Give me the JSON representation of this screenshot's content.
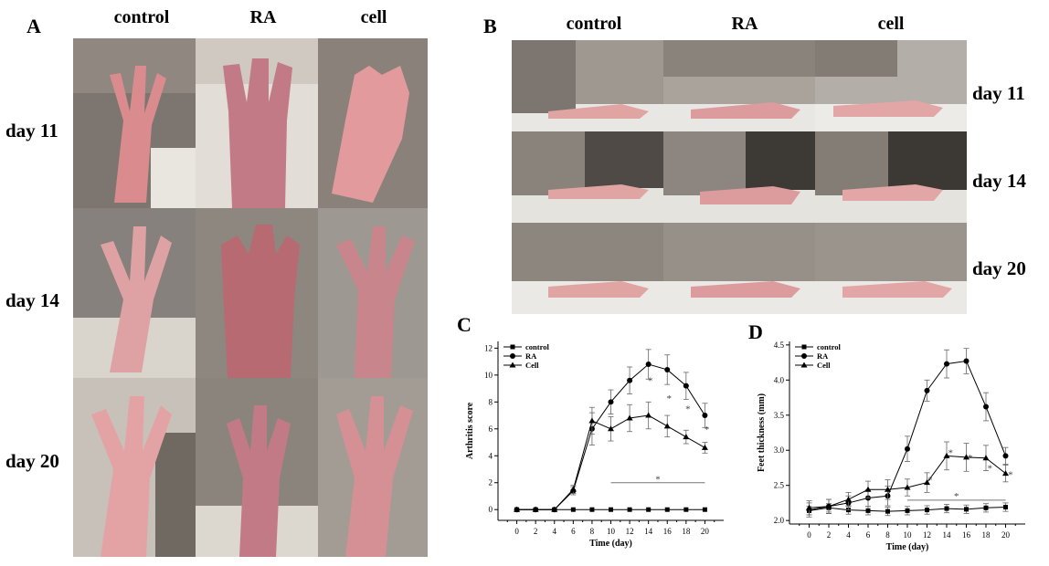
{
  "panels": {
    "A": {
      "letter": "A",
      "columns": [
        "control",
        "RA",
        "cell"
      ],
      "rows": [
        "day 11",
        "day 14",
        "day 20"
      ]
    },
    "B": {
      "letter": "B",
      "columns": [
        "control",
        "RA",
        "cell"
      ],
      "rows": [
        "day 11",
        "day 14",
        "day 20"
      ]
    },
    "C": {
      "letter": "C"
    },
    "D": {
      "letter": "D"
    }
  },
  "colors": {
    "line": "#000000",
    "skin": "#d98b8e",
    "fur": "#7d7670",
    "bg": "#ffffff"
  },
  "chart_data": [
    {
      "type": "line",
      "panel": "C",
      "xlabel": "Time (day)",
      "ylabel": "Arthritis score",
      "x": [
        0,
        2,
        4,
        6,
        8,
        10,
        12,
        14,
        16,
        18,
        20
      ],
      "xlim": [
        -2,
        22
      ],
      "ylim": [
        -0.8,
        12.5
      ],
      "xticks": [
        0,
        2,
        4,
        6,
        8,
        10,
        12,
        14,
        16,
        18,
        20
      ],
      "yticks": [
        0,
        2,
        4,
        6,
        8,
        10,
        12
      ],
      "legend_position": "top-left",
      "series": [
        {
          "name": "control",
          "marker": "square",
          "values": [
            0,
            0,
            0,
            0,
            0,
            0,
            0,
            0,
            0,
            0,
            0
          ],
          "errors": [
            0,
            0,
            0,
            0,
            0,
            0,
            0,
            0,
            0,
            0,
            0
          ]
        },
        {
          "name": "RA",
          "marker": "circle",
          "values": [
            0,
            0,
            0,
            1.4,
            6.0,
            8.0,
            9.6,
            10.8,
            10.4,
            9.2,
            7.0
          ],
          "errors": [
            0,
            0,
            0,
            0.3,
            1.2,
            0.9,
            1.0,
            1.1,
            1.1,
            1.0,
            0.9
          ]
        },
        {
          "name": "Cell",
          "marker": "triangle",
          "values": [
            0,
            0,
            0,
            1.5,
            6.6,
            6.0,
            6.8,
            7.0,
            6.2,
            5.4,
            4.6
          ],
          "errors": [
            0,
            0,
            0,
            0.3,
            1.0,
            0.9,
            1.0,
            1.0,
            0.8,
            0.5,
            0.4
          ]
        }
      ],
      "annotations": [
        {
          "text": "*",
          "x": 14.2,
          "y": 9.6
        },
        {
          "text": "*",
          "x": 16.2,
          "y": 8.3
        },
        {
          "text": "*",
          "x": 18.2,
          "y": 7.5
        },
        {
          "text": "*",
          "x": 20.2,
          "y": 6.0
        },
        {
          "text": "*",
          "x": 15,
          "y": 2.3
        }
      ],
      "significance_bar": {
        "x0": 10,
        "x1": 20,
        "y": 2.0
      }
    },
    {
      "type": "line",
      "panel": "D",
      "xlabel": "Time (day)",
      "ylabel": "Feet thickness (mm)",
      "x": [
        0,
        2,
        4,
        6,
        8,
        10,
        12,
        14,
        16,
        18,
        20
      ],
      "xlim": [
        -2,
        22
      ],
      "ylim": [
        1.95,
        4.55
      ],
      "xticks": [
        0,
        2,
        4,
        6,
        8,
        10,
        12,
        14,
        16,
        18,
        20
      ],
      "yticks": [
        2.0,
        2.5,
        3.0,
        3.5,
        4.0,
        4.5
      ],
      "legend_position": "top-left",
      "series": [
        {
          "name": "control",
          "marker": "square",
          "values": [
            2.14,
            2.18,
            2.15,
            2.14,
            2.13,
            2.14,
            2.15,
            2.17,
            2.16,
            2.18,
            2.19
          ],
          "errors": [
            0.06,
            0.06,
            0.06,
            0.06,
            0.06,
            0.06,
            0.06,
            0.06,
            0.06,
            0.06,
            0.06
          ]
        },
        {
          "name": "RA",
          "marker": "circle",
          "values": [
            2.15,
            2.2,
            2.25,
            2.32,
            2.35,
            3.02,
            3.85,
            4.23,
            4.27,
            3.62,
            2.92
          ],
          "errors": [
            0.1,
            0.1,
            0.1,
            0.12,
            0.14,
            0.18,
            0.15,
            0.2,
            0.18,
            0.2,
            0.12
          ]
        },
        {
          "name": "Cell",
          "marker": "triangle",
          "values": [
            2.18,
            2.2,
            2.3,
            2.44,
            2.44,
            2.47,
            2.54,
            2.92,
            2.9,
            2.89,
            2.67
          ],
          "errors": [
            0.1,
            0.1,
            0.1,
            0.12,
            0.14,
            0.12,
            0.14,
            0.2,
            0.2,
            0.18,
            0.12
          ]
        }
      ],
      "annotations": [
        {
          "text": "*",
          "x": 12.3,
          "y": 2.58
        },
        {
          "text": "*",
          "x": 14.4,
          "y": 2.97
        },
        {
          "text": "*",
          "x": 16.4,
          "y": 2.9
        },
        {
          "text": "*",
          "x": 18.4,
          "y": 2.75
        },
        {
          "text": "*",
          "x": 20.5,
          "y": 2.66
        },
        {
          "text": "*",
          "x": 15,
          "y": 2.35
        }
      ],
      "significance_bar": {
        "x0": 10,
        "x1": 20,
        "y": 2.29
      }
    }
  ]
}
